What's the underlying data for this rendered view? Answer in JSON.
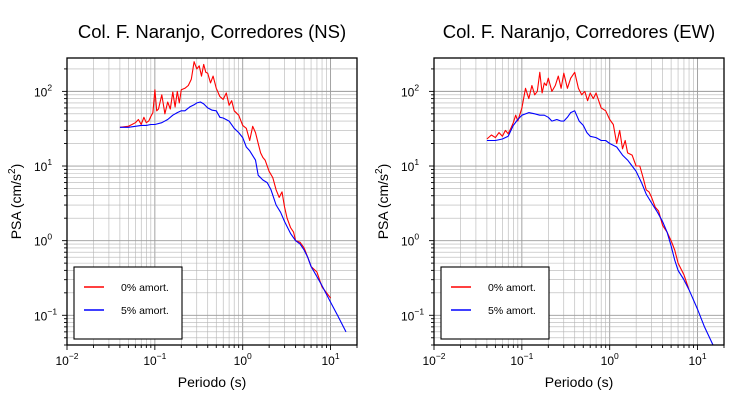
{
  "chart_data": [
    {
      "type": "line",
      "title": "Col. F. Naranjo, Corredores (NS)",
      "xlabel": "Periodo (s)",
      "ylabel_prefix": "PSA (cm/s",
      "ylabel_exp": "2",
      "ylabel_suffix": ")",
      "xscale": "log",
      "yscale": "log",
      "xlim": [
        0.01,
        20
      ],
      "ylim": [
        0.04,
        280
      ],
      "grid": true,
      "legend_position": "bottom-left",
      "x_ticks": [
        {
          "base": "10",
          "exp": "−2"
        },
        {
          "base": "10",
          "exp": "−1"
        },
        {
          "base": "10",
          "exp": "0"
        },
        {
          "base": "10",
          "exp": "1"
        }
      ],
      "y_ticks": [
        {
          "base": "10",
          "exp": "−1"
        },
        {
          "base": "10",
          "exp": "0"
        },
        {
          "base": "10",
          "exp": "1"
        },
        {
          "base": "10",
          "exp": "2"
        }
      ],
      "series": [
        {
          "name": "0% amort.",
          "color": "#ff0000",
          "x": [
            0.04,
            0.05,
            0.055,
            0.06,
            0.065,
            0.07,
            0.075,
            0.08,
            0.085,
            0.09,
            0.095,
            0.1,
            0.105,
            0.11,
            0.12,
            0.13,
            0.14,
            0.15,
            0.16,
            0.17,
            0.18,
            0.19,
            0.2,
            0.22,
            0.24,
            0.26,
            0.28,
            0.3,
            0.32,
            0.34,
            0.36,
            0.38,
            0.4,
            0.43,
            0.46,
            0.5,
            0.55,
            0.6,
            0.65,
            0.7,
            0.75,
            0.8,
            0.9,
            1.0,
            1.1,
            1.2,
            1.3,
            1.4,
            1.5,
            1.6,
            1.7,
            1.8,
            2.0,
            2.2,
            2.4,
            2.6,
            2.8,
            3.0,
            3.2,
            3.5,
            3.8,
            4.0,
            4.5,
            5.0,
            5.5,
            6.0,
            7.0,
            8.0,
            10.0
          ],
          "y": [
            33,
            34,
            36,
            38,
            42,
            36,
            45,
            38,
            40,
            46,
            52,
            105,
            55,
            58,
            90,
            50,
            72,
            58,
            98,
            62,
            100,
            70,
            105,
            110,
            120,
            145,
            250,
            200,
            220,
            160,
            230,
            180,
            175,
            130,
            160,
            110,
            85,
            78,
            95,
            65,
            75,
            55,
            48,
            35,
            32,
            22,
            34,
            28,
            20,
            15,
            13,
            12,
            8.5,
            7.0,
            4.8,
            3.8,
            4.5,
            2.8,
            2.0,
            1.5,
            1.3,
            1.0,
            0.95,
            0.8,
            0.6,
            0.45,
            0.38,
            0.24,
            0.17
          ]
        },
        {
          "name": "5% amort.",
          "color": "#0000ff",
          "x": [
            0.04,
            0.05,
            0.06,
            0.07,
            0.08,
            0.09,
            0.1,
            0.12,
            0.14,
            0.16,
            0.18,
            0.2,
            0.22,
            0.25,
            0.28,
            0.3,
            0.33,
            0.36,
            0.4,
            0.45,
            0.5,
            0.55,
            0.6,
            0.7,
            0.8,
            0.9,
            1.0,
            1.1,
            1.2,
            1.4,
            1.5,
            1.7,
            1.9,
            2.1,
            2.4,
            2.7,
            3.0,
            3.5,
            4.0,
            4.5,
            5.0,
            5.5,
            6.0,
            7.0,
            8.0,
            10.0,
            12.0,
            15.0
          ],
          "y": [
            33,
            33,
            34,
            35,
            35,
            36,
            36,
            38,
            42,
            48,
            52,
            55,
            55,
            62,
            66,
            70,
            72,
            68,
            60,
            56,
            55,
            45,
            44,
            40,
            32,
            28,
            24,
            18,
            16,
            12,
            7.5,
            6.5,
            6.0,
            4.8,
            3.0,
            2.4,
            1.8,
            1.25,
            1.0,
            0.9,
            0.75,
            0.6,
            0.45,
            0.33,
            0.25,
            0.15,
            0.1,
            0.06
          ]
        }
      ]
    },
    {
      "type": "line",
      "title": "Col. F. Naranjo, Corredores (EW)",
      "xlabel": "Periodo (s)",
      "ylabel_prefix": "PSA (cm/s",
      "ylabel_exp": "2",
      "ylabel_suffix": ")",
      "xscale": "log",
      "yscale": "log",
      "xlim": [
        0.01,
        20
      ],
      "ylim": [
        0.04,
        280
      ],
      "grid": true,
      "legend_position": "bottom-left",
      "x_ticks": [
        {
          "base": "10",
          "exp": "−2"
        },
        {
          "base": "10",
          "exp": "−1"
        },
        {
          "base": "10",
          "exp": "0"
        },
        {
          "base": "10",
          "exp": "1"
        }
      ],
      "y_ticks": [
        {
          "base": "10",
          "exp": "−1"
        },
        {
          "base": "10",
          "exp": "0"
        },
        {
          "base": "10",
          "exp": "1"
        },
        {
          "base": "10",
          "exp": "2"
        }
      ],
      "series": [
        {
          "name": "0% amort.",
          "color": "#ff0000",
          "x": [
            0.04,
            0.045,
            0.05,
            0.055,
            0.06,
            0.065,
            0.07,
            0.075,
            0.08,
            0.085,
            0.09,
            0.1,
            0.11,
            0.12,
            0.13,
            0.14,
            0.15,
            0.16,
            0.17,
            0.18,
            0.19,
            0.2,
            0.22,
            0.24,
            0.26,
            0.28,
            0.3,
            0.33,
            0.36,
            0.4,
            0.44,
            0.48,
            0.52,
            0.56,
            0.6,
            0.65,
            0.7,
            0.75,
            0.8,
            0.9,
            1.0,
            1.1,
            1.2,
            1.3,
            1.4,
            1.5,
            1.6,
            1.8,
            2.0,
            2.2,
            2.4,
            2.6,
            2.8,
            3.0,
            3.3,
            3.6,
            4.0,
            4.5,
            5.0,
            5.5,
            6.0,
            7.0,
            8.0
          ],
          "y": [
            23,
            26,
            24,
            28,
            25,
            30,
            27,
            32,
            38,
            48,
            40,
            60,
            110,
            80,
            120,
            90,
            100,
            180,
            95,
            130,
            120,
            150,
            100,
            120,
            160,
            110,
            175,
            110,
            150,
            180,
            110,
            90,
            100,
            75,
            95,
            80,
            95,
            75,
            60,
            55,
            42,
            36,
            20,
            30,
            17,
            22,
            15,
            14,
            10,
            10,
            7,
            4.8,
            4.5,
            3.8,
            2.8,
            2.5,
            1.6,
            1.3,
            1.0,
            0.75,
            0.5,
            0.35,
            0.22
          ]
        },
        {
          "name": "5% amort.",
          "color": "#0000ff",
          "x": [
            0.04,
            0.05,
            0.06,
            0.07,
            0.08,
            0.09,
            0.1,
            0.12,
            0.14,
            0.16,
            0.18,
            0.2,
            0.22,
            0.25,
            0.28,
            0.3,
            0.33,
            0.36,
            0.4,
            0.45,
            0.5,
            0.55,
            0.6,
            0.7,
            0.8,
            0.9,
            1.0,
            1.2,
            1.4,
            1.6,
            1.8,
            2.0,
            2.3,
            2.6,
            3.0,
            3.5,
            4.0,
            4.5,
            5.0,
            5.5,
            6.0,
            7.0,
            8.0,
            10.0,
            12.0,
            15.0
          ],
          "y": [
            22,
            22,
            23,
            25,
            35,
            42,
            48,
            52,
            50,
            48,
            48,
            45,
            40,
            42,
            40,
            40,
            45,
            52,
            55,
            40,
            35,
            28,
            25,
            24,
            22,
            22,
            20,
            18,
            14,
            12,
            10,
            8.5,
            6,
            4.2,
            3.2,
            2.4,
            1.8,
            1.3,
            0.85,
            0.55,
            0.4,
            0.3,
            0.22,
            0.12,
            0.07,
            0.04
          ]
        }
      ]
    }
  ]
}
